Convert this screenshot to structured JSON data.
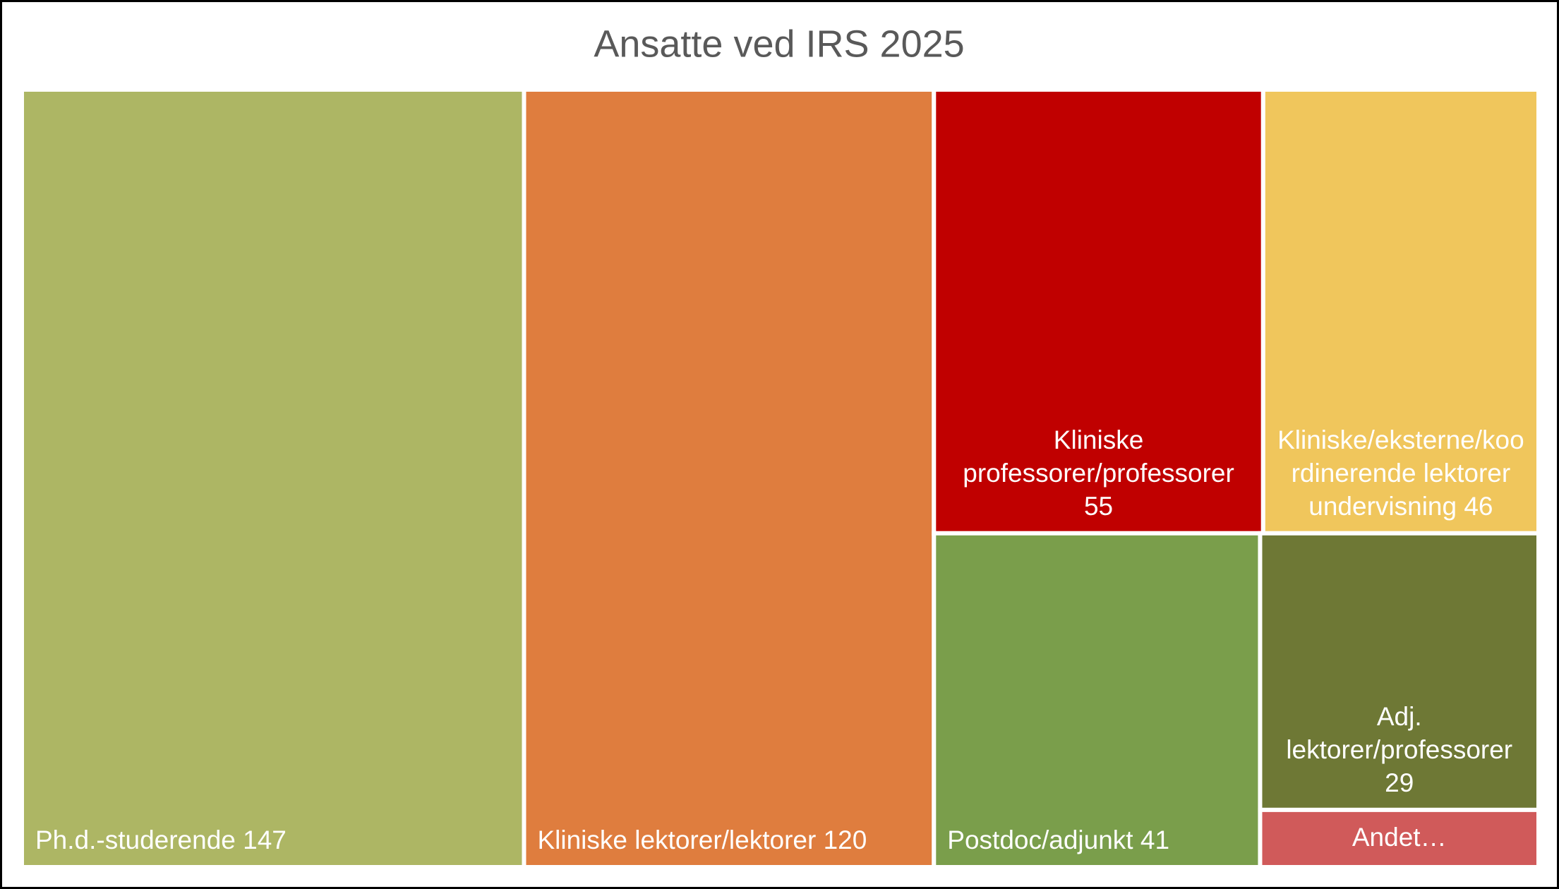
{
  "chart_data": {
    "type": "treemap",
    "title": "Ansatte ved IRS 2025",
    "categories": [
      "Ph.d.-studerende",
      "Kliniske lektorer/lektorer",
      "Kliniske professorer/professorer",
      "Kliniske/eksterne/koordinerende lektorer undervisning",
      "Postdoc/adjunkt",
      "Adj. lektorer/professorer",
      "Andet…"
    ],
    "values": [
      147,
      120,
      55,
      46,
      41,
      29,
      6
    ],
    "value_labels": [
      "147",
      "120",
      "55",
      "46",
      "41",
      "29",
      null
    ],
    "colors": [
      "#adb664",
      "#df7d3e",
      "#c00000",
      "#f0c65c",
      "#7a9e4b",
      "#6e7835",
      "#d05a5a"
    ]
  }
}
